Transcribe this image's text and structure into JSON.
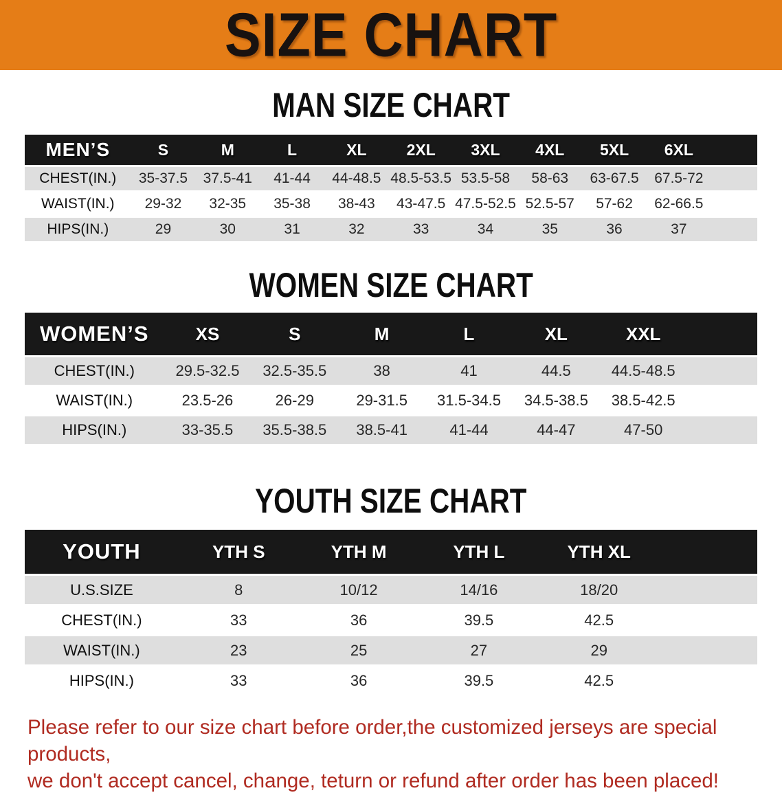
{
  "banner": {
    "title": "SIZE CHART"
  },
  "colors": {
    "banner_bg": "#e57d17",
    "header_bg": "#181818",
    "row_alt_bg": "#dedede",
    "note_color": "#b02b21"
  },
  "men": {
    "heading": "MAN SIZE CHART",
    "label": "MEN’S",
    "sizes": [
      "S",
      "M",
      "L",
      "XL",
      "2XL",
      "3XL",
      "4XL",
      "5XL",
      "6XL"
    ],
    "rows": [
      {
        "label": "CHEST(IN.)",
        "values": [
          "35-37.5",
          "37.5-41",
          "41-44",
          "44-48.5",
          "48.5-53.5",
          "53.5-58",
          "58-63",
          "63-67.5",
          "67.5-72"
        ]
      },
      {
        "label": "WAIST(IN.)",
        "values": [
          "29-32",
          "32-35",
          "35-38",
          "38-43",
          "43-47.5",
          "47.5-52.5",
          "52.5-57",
          "57-62",
          "62-66.5"
        ]
      },
      {
        "label": "HIPS(IN.)",
        "values": [
          "29",
          "30",
          "31",
          "32",
          "33",
          "34",
          "35",
          "36",
          "37"
        ]
      }
    ]
  },
  "women": {
    "heading": "WOMEN SIZE CHART",
    "label": "WOMEN’S",
    "sizes": [
      "XS",
      "S",
      "M",
      "L",
      "XL",
      "XXL"
    ],
    "rows": [
      {
        "label": "CHEST(IN.)",
        "values": [
          "29.5-32.5",
          "32.5-35.5",
          "38",
          "41",
          "44.5",
          "44.5-48.5"
        ]
      },
      {
        "label": "WAIST(IN.)",
        "values": [
          "23.5-26",
          "26-29",
          "29-31.5",
          "31.5-34.5",
          "34.5-38.5",
          "38.5-42.5"
        ]
      },
      {
        "label": "HIPS(IN.)",
        "values": [
          "33-35.5",
          "35.5-38.5",
          "38.5-41",
          "41-44",
          "44-47",
          "47-50"
        ]
      }
    ]
  },
  "youth": {
    "heading": "YOUTH SIZE CHART",
    "label": "YOUTH",
    "sizes": [
      "YTH S",
      "YTH M",
      "YTH L",
      "YTH XL"
    ],
    "rows": [
      {
        "label": "U.S.SIZE",
        "values": [
          "8",
          "10/12",
          "14/16",
          "18/20"
        ]
      },
      {
        "label": "CHEST(IN.)",
        "values": [
          "33",
          "36",
          "39.5",
          "42.5"
        ]
      },
      {
        "label": "WAIST(IN.)",
        "values": [
          "23",
          "25",
          "27",
          "29"
        ]
      },
      {
        "label": "HIPS(IN.)",
        "values": [
          "33",
          "36",
          "39.5",
          "42.5"
        ]
      }
    ]
  },
  "note": {
    "line1": "Please refer to our size chart before order,the customized jerseys are special products,",
    "line2": "we don't accept cancel, change, teturn or refund after order has been placed!"
  }
}
